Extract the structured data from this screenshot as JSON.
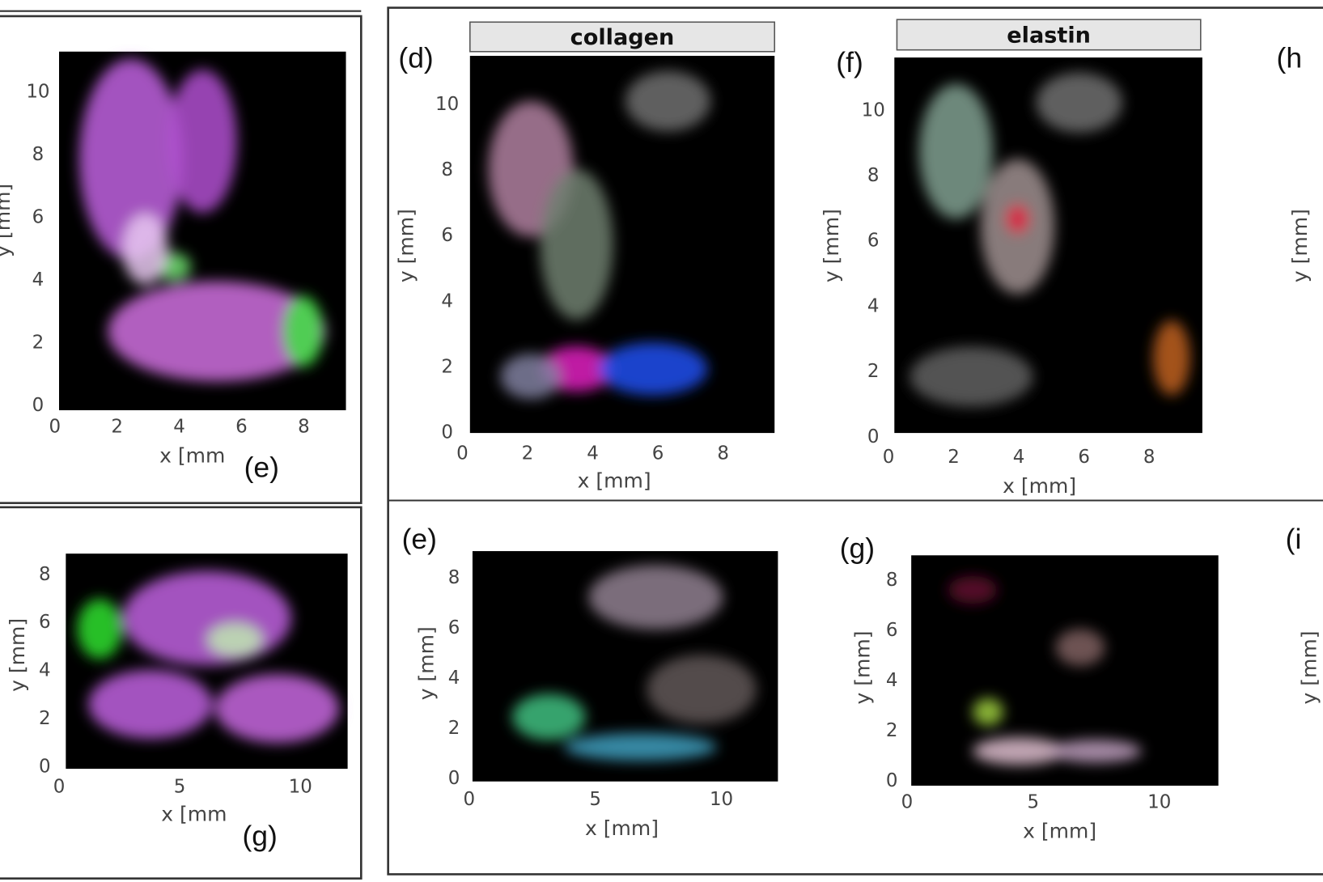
{
  "panels": [
    {
      "letter": "(e)",
      "x_label": "x [mm",
      "y_label": "y [mm]",
      "x_ticks": [
        0,
        2,
        4,
        6,
        8
      ],
      "y_ticks": [
        0,
        2,
        4,
        6,
        8,
        10
      ]
    },
    {
      "letter": "(g)",
      "x_label": "x [mm",
      "y_label": "y [mm]",
      "x_ticks": [
        0,
        5,
        10
      ],
      "y_ticks": [
        0,
        2,
        4,
        6,
        8
      ]
    },
    {
      "letter": "(d)",
      "title": "collagen",
      "x_label": "x [mm]",
      "y_label": "y [mm]",
      "x_ticks": [
        0,
        2,
        4,
        6,
        8
      ],
      "y_ticks": [
        0,
        2,
        4,
        6,
        8,
        10
      ]
    },
    {
      "letter": "(f)",
      "title": "elastin",
      "x_label": "x [mm]",
      "y_label": "y [mm]",
      "x_ticks": [
        0,
        2,
        4,
        6,
        8
      ],
      "y_ticks": [
        0,
        2,
        4,
        6,
        8,
        10
      ]
    },
    {
      "letter": "(h",
      "y_label": "y [mm]"
    },
    {
      "letter": "(e)",
      "x_label": "x [mm]",
      "y_label": "y [mm]",
      "x_ticks": [
        0,
        5,
        10
      ],
      "y_ticks": [
        0,
        2,
        4,
        6,
        8
      ]
    },
    {
      "letter": "(g)",
      "x_label": "x [mm]",
      "y_label": "y [mm]",
      "x_ticks": [
        0,
        5,
        10
      ],
      "y_ticks": [
        0,
        2,
        4,
        6,
        8
      ]
    },
    {
      "letter": "(i",
      "y_label": "y [mm]"
    }
  ]
}
